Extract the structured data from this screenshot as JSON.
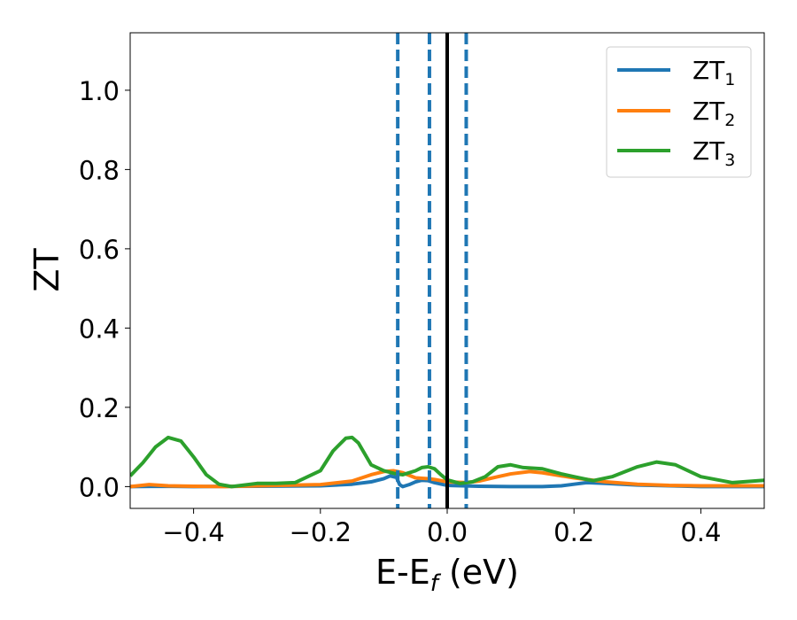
{
  "chart_data": {
    "type": "line",
    "xlabel_main": "E-E",
    "xlabel_sub": "f",
    "xlabel_unit": " (eV)",
    "ylabel": "ZT",
    "xlim": [
      -0.5,
      0.5
    ],
    "ylim": [
      -0.055,
      1.145
    ],
    "x_ticks": [
      -0.4,
      -0.2,
      0.0,
      0.2,
      0.4
    ],
    "x_tick_labels": [
      "−0.4",
      "−0.2",
      "0.0",
      "0.2",
      "0.4"
    ],
    "y_ticks": [
      0.0,
      0.2,
      0.4,
      0.6,
      0.8,
      1.0
    ],
    "y_tick_labels": [
      "0.0",
      "0.2",
      "0.4",
      "0.6",
      "0.8",
      "1.0"
    ],
    "grid": false,
    "legend_position": "top-right",
    "vertical_lines": [
      {
        "x": -0.078,
        "style": "dashed",
        "color": "#1f77b4"
      },
      {
        "x": -0.028,
        "style": "dashed",
        "color": "#1f77b4"
      },
      {
        "x": 0.0,
        "style": "solid",
        "color": "#000000"
      },
      {
        "x": 0.03,
        "style": "dashed",
        "color": "#1f77b4"
      }
    ],
    "series": [
      {
        "name": "ZT",
        "sub": "1",
        "color": "#1f77b4",
        "x": [
          -0.5,
          -0.45,
          -0.4,
          -0.3,
          -0.2,
          -0.15,
          -0.12,
          -0.1,
          -0.09,
          -0.08,
          -0.075,
          -0.07,
          -0.06,
          -0.05,
          -0.04,
          -0.03,
          -0.02,
          0.0,
          0.05,
          0.1,
          0.15,
          0.18,
          0.2,
          0.22,
          0.25,
          0.3,
          0.4,
          0.5
        ],
        "y": [
          0.0,
          0.001,
          0.0,
          0.001,
          0.002,
          0.006,
          0.012,
          0.02,
          0.027,
          0.023,
          0.005,
          0.0,
          0.005,
          0.012,
          0.016,
          0.015,
          0.01,
          0.003,
          0.001,
          0.0,
          0.0,
          0.002,
          0.006,
          0.01,
          0.008,
          0.004,
          0.0,
          0.0
        ]
      },
      {
        "name": "ZT",
        "sub": "2",
        "color": "#ff7f0e",
        "x": [
          -0.5,
          -0.47,
          -0.44,
          -0.4,
          -0.35,
          -0.3,
          -0.2,
          -0.15,
          -0.12,
          -0.1,
          -0.085,
          -0.07,
          -0.05,
          -0.03,
          -0.02,
          0.0,
          0.03,
          0.05,
          0.08,
          0.1,
          0.13,
          0.15,
          0.2,
          0.25,
          0.3,
          0.35,
          0.4,
          0.45,
          0.5
        ],
        "y": [
          0.0,
          0.005,
          0.002,
          0.001,
          0.0,
          0.002,
          0.005,
          0.014,
          0.03,
          0.038,
          0.04,
          0.035,
          0.022,
          0.02,
          0.018,
          0.012,
          0.01,
          0.014,
          0.025,
          0.032,
          0.038,
          0.035,
          0.022,
          0.012,
          0.006,
          0.003,
          0.002,
          0.002,
          0.002
        ]
      },
      {
        "name": "ZT",
        "sub": "3",
        "color": "#2ca02c",
        "x": [
          -0.5,
          -0.48,
          -0.46,
          -0.44,
          -0.42,
          -0.4,
          -0.38,
          -0.36,
          -0.34,
          -0.32,
          -0.3,
          -0.27,
          -0.24,
          -0.2,
          -0.18,
          -0.16,
          -0.15,
          -0.14,
          -0.12,
          -0.1,
          -0.09,
          -0.08,
          -0.07,
          -0.05,
          -0.04,
          -0.03,
          -0.02,
          -0.01,
          0.0,
          0.02,
          0.04,
          0.06,
          0.08,
          0.1,
          0.12,
          0.15,
          0.18,
          0.2,
          0.23,
          0.26,
          0.3,
          0.33,
          0.36,
          0.4,
          0.45,
          0.5
        ],
        "y": [
          0.027,
          0.06,
          0.1,
          0.124,
          0.115,
          0.075,
          0.03,
          0.006,
          0.0,
          0.004,
          0.008,
          0.008,
          0.01,
          0.04,
          0.09,
          0.122,
          0.124,
          0.11,
          0.055,
          0.04,
          0.036,
          0.032,
          0.03,
          0.04,
          0.048,
          0.05,
          0.045,
          0.03,
          0.017,
          0.008,
          0.012,
          0.025,
          0.05,
          0.055,
          0.048,
          0.045,
          0.032,
          0.025,
          0.015,
          0.025,
          0.05,
          0.062,
          0.055,
          0.025,
          0.01,
          0.016
        ]
      }
    ]
  }
}
